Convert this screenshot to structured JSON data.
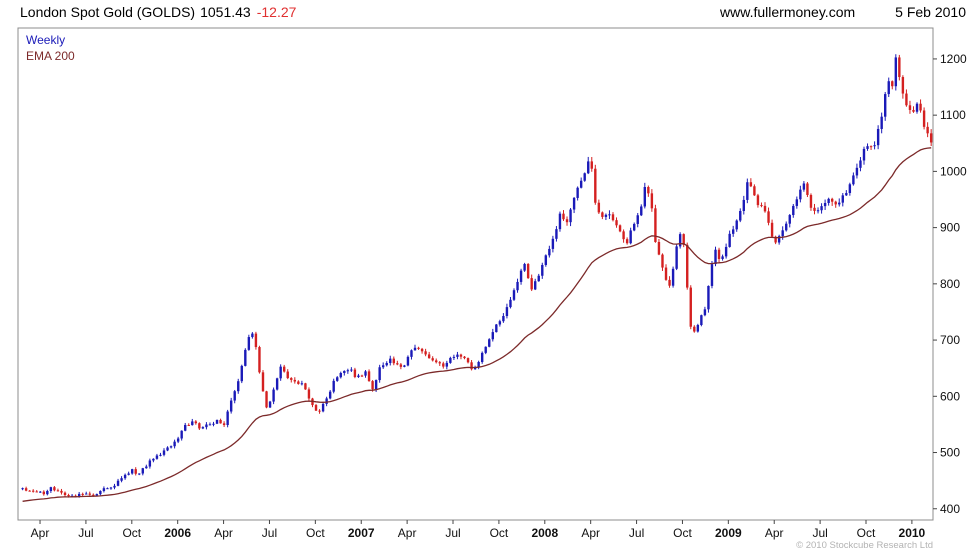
{
  "header": {
    "title": "London Spot Gold (GOLDS)",
    "price": "1051.43",
    "change": "-12.27",
    "website": "www.fullermoney.com",
    "date": "5 Feb 2010"
  },
  "legend": {
    "weekly": "Weekly",
    "ema": "EMA 200"
  },
  "footer": {
    "copyright": "© 2010 Stockcube Research Ltd"
  },
  "colors": {
    "up": "#1a1ab8",
    "down": "#d42020",
    "ema": "#7c2a2a",
    "axis": "#444444",
    "border": "#8c8c8c",
    "change_text": "#e03030"
  },
  "chart_data": {
    "type": "candlestick",
    "title": "London Spot Gold (GOLDS)",
    "frequency": "Weekly",
    "overlay": "EMA 200",
    "grid": false,
    "x_domain": [
      2005.13,
      2010.115
    ],
    "y_domain": [
      380,
      1255
    ],
    "bar_domain": [
      2005.155,
      2010.105
    ],
    "bars": 258,
    "ema_period": 40,
    "ema_seed": 412,
    "noise_pct": 0.006,
    "wick_pct": 0.009,
    "last_close": 1051.43,
    "y_ticks": [
      400,
      500,
      600,
      700,
      800,
      900,
      1000,
      1100,
      1200
    ],
    "x_ticks": [
      {
        "t": 2005.25,
        "label": "Apr",
        "bold": false
      },
      {
        "t": 2005.5,
        "label": "Jul",
        "bold": false
      },
      {
        "t": 2005.75,
        "label": "Oct",
        "bold": false
      },
      {
        "t": 2006.0,
        "label": "2006",
        "bold": true
      },
      {
        "t": 2006.25,
        "label": "Apr",
        "bold": false
      },
      {
        "t": 2006.5,
        "label": "Jul",
        "bold": false
      },
      {
        "t": 2006.75,
        "label": "Oct",
        "bold": false
      },
      {
        "t": 2007.0,
        "label": "2007",
        "bold": true
      },
      {
        "t": 2007.25,
        "label": "Apr",
        "bold": false
      },
      {
        "t": 2007.5,
        "label": "Jul",
        "bold": false
      },
      {
        "t": 2007.75,
        "label": "Oct",
        "bold": false
      },
      {
        "t": 2008.0,
        "label": "2008",
        "bold": true
      },
      {
        "t": 2008.25,
        "label": "Apr",
        "bold": false
      },
      {
        "t": 2008.5,
        "label": "Jul",
        "bold": false
      },
      {
        "t": 2008.75,
        "label": "Oct",
        "bold": false
      },
      {
        "t": 2009.0,
        "label": "2009",
        "bold": true
      },
      {
        "t": 2009.25,
        "label": "Apr",
        "bold": false
      },
      {
        "t": 2009.5,
        "label": "Jul",
        "bold": false
      },
      {
        "t": 2009.75,
        "label": "Oct",
        "bold": false
      },
      {
        "t": 2010.0,
        "label": "2010",
        "bold": true
      }
    ],
    "anchors": [
      [
        2005.15,
        436
      ],
      [
        2005.21,
        430
      ],
      [
        2005.27,
        428
      ],
      [
        2005.31,
        438
      ],
      [
        2005.37,
        426
      ],
      [
        2005.42,
        420
      ],
      [
        2005.46,
        428
      ],
      [
        2005.52,
        424
      ],
      [
        2005.56,
        426
      ],
      [
        2005.6,
        437
      ],
      [
        2005.65,
        441
      ],
      [
        2005.7,
        456
      ],
      [
        2005.75,
        469
      ],
      [
        2005.79,
        461
      ],
      [
        2005.83,
        478
      ],
      [
        2005.88,
        492
      ],
      [
        2005.92,
        502
      ],
      [
        2005.96,
        510
      ],
      [
        2006.0,
        522
      ],
      [
        2006.04,
        548
      ],
      [
        2006.08,
        556
      ],
      [
        2006.12,
        541
      ],
      [
        2006.17,
        552
      ],
      [
        2006.21,
        556
      ],
      [
        2006.25,
        547
      ],
      [
        2006.29,
        588
      ],
      [
        2006.33,
        626
      ],
      [
        2006.37,
        688
      ],
      [
        2006.4,
        722
      ],
      [
        2006.43,
        678
      ],
      [
        2006.46,
        613
      ],
      [
        2006.49,
        572
      ],
      [
        2006.53,
        620
      ],
      [
        2006.56,
        655
      ],
      [
        2006.6,
        634
      ],
      [
        2006.65,
        627
      ],
      [
        2006.69,
        616
      ],
      [
        2006.73,
        583
      ],
      [
        2006.77,
        572
      ],
      [
        2006.81,
        592
      ],
      [
        2006.85,
        627
      ],
      [
        2006.9,
        641
      ],
      [
        2006.94,
        648
      ],
      [
        2006.98,
        632
      ],
      [
        2007.02,
        644
      ],
      [
        2007.06,
        611
      ],
      [
        2007.1,
        652
      ],
      [
        2007.15,
        666
      ],
      [
        2007.19,
        655
      ],
      [
        2007.23,
        650
      ],
      [
        2007.27,
        679
      ],
      [
        2007.31,
        688
      ],
      [
        2007.35,
        672
      ],
      [
        2007.4,
        658
      ],
      [
        2007.44,
        655
      ],
      [
        2007.48,
        662
      ],
      [
        2007.52,
        679
      ],
      [
        2007.56,
        665
      ],
      [
        2007.6,
        650
      ],
      [
        2007.64,
        660
      ],
      [
        2007.68,
        691
      ],
      [
        2007.72,
        715
      ],
      [
        2007.76,
        738
      ],
      [
        2007.8,
        762
      ],
      [
        2007.84,
        792
      ],
      [
        2007.87,
        823
      ],
      [
        2007.89,
        834
      ],
      [
        2007.92,
        790
      ],
      [
        2007.95,
        801
      ],
      [
        2007.98,
        832
      ],
      [
        2008.02,
        862
      ],
      [
        2008.06,
        895
      ],
      [
        2008.08,
        925
      ],
      [
        2008.12,
        911
      ],
      [
        2008.15,
        945
      ],
      [
        2008.19,
        974
      ],
      [
        2008.22,
        1005
      ],
      [
        2008.25,
        1023
      ],
      [
        2008.28,
        933
      ],
      [
        2008.31,
        916
      ],
      [
        2008.35,
        930
      ],
      [
        2008.38,
        912
      ],
      [
        2008.42,
        888
      ],
      [
        2008.45,
        872
      ],
      [
        2008.48,
        905
      ],
      [
        2008.52,
        928
      ],
      [
        2008.55,
        975
      ],
      [
        2008.58,
        938
      ],
      [
        2008.61,
        858
      ],
      [
        2008.64,
        832
      ],
      [
        2008.67,
        790
      ],
      [
        2008.7,
        825
      ],
      [
        2008.73,
        898
      ],
      [
        2008.76,
        868
      ],
      [
        2008.79,
        730
      ],
      [
        2008.81,
        712
      ],
      [
        2008.84,
        735
      ],
      [
        2008.87,
        748
      ],
      [
        2008.9,
        815
      ],
      [
        2008.93,
        862
      ],
      [
        2008.96,
        838
      ],
      [
        2009.0,
        878
      ],
      [
        2009.04,
        910
      ],
      [
        2009.08,
        942
      ],
      [
        2009.11,
        988
      ],
      [
        2009.14,
        962
      ],
      [
        2009.17,
        938
      ],
      [
        2009.21,
        924
      ],
      [
        2009.25,
        872
      ],
      [
        2009.29,
        888
      ],
      [
        2009.33,
        924
      ],
      [
        2009.37,
        948
      ],
      [
        2009.41,
        978
      ],
      [
        2009.45,
        935
      ],
      [
        2009.48,
        928
      ],
      [
        2009.52,
        938
      ],
      [
        2009.56,
        950
      ],
      [
        2009.6,
        945
      ],
      [
        2009.64,
        958
      ],
      [
        2009.68,
        994
      ],
      [
        2009.71,
        1008
      ],
      [
        2009.75,
        1046
      ],
      [
        2009.78,
        1040
      ],
      [
        2009.81,
        1062
      ],
      [
        2009.84,
        1104
      ],
      [
        2009.87,
        1168
      ],
      [
        2009.89,
        1142
      ],
      [
        2009.91,
        1212
      ],
      [
        2009.93,
        1176
      ],
      [
        2009.96,
        1128
      ],
      [
        2010.0,
        1096
      ],
      [
        2010.03,
        1122
      ],
      [
        2010.06,
        1088
      ],
      [
        2010.1,
        1051.43
      ]
    ]
  }
}
